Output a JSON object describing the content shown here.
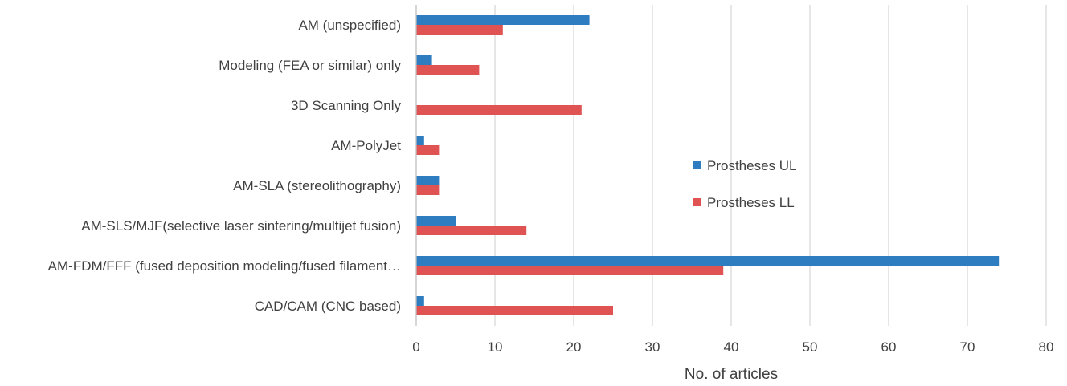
{
  "chart_data": {
    "type": "bar",
    "orientation": "horizontal",
    "categories": [
      "AM (unspecified)",
      "Modeling (FEA or similar) only",
      "3D  Scanning Only",
      "AM-PolyJet",
      "AM-SLA (stereolithography)",
      "AM-SLS/MJF(selective laser sintering/multijet fusion)",
      "AM-FDM/FFF (fused deposition modeling/fused filament…",
      "CAD/CAM (CNC based)"
    ],
    "series": [
      {
        "name": "Prostheses UL",
        "color": "#2e7dc0",
        "values": [
          22,
          2,
          0,
          1,
          3,
          5,
          74,
          1
        ]
      },
      {
        "name": "Prostheses LL",
        "color": "#e05353",
        "values": [
          11,
          8,
          21,
          3,
          3,
          14,
          39,
          25
        ]
      }
    ],
    "xlabel": "No. of articles",
    "xlim": [
      0,
      80
    ],
    "xticks": [
      "0",
      "10",
      "20",
      "30",
      "40",
      "50",
      "60",
      "70",
      "80"
    ],
    "grid": true,
    "legend_position": "right"
  }
}
